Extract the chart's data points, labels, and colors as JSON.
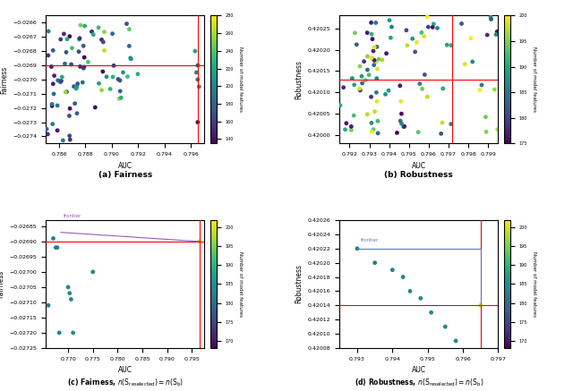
{
  "fig_width": 6.4,
  "fig_height": 4.37,
  "a_xlabel": "AUC",
  "a_ylabel": "Fairness",
  "b_xlabel": "AUC",
  "b_ylabel": "Robustness",
  "c_xlabel": "AUC",
  "c_ylabel": "Fairness",
  "d_xlabel": "AUC",
  "d_ylabel": "Robustness",
  "a_xlim": [
    0.785,
    0.797
  ],
  "a_ylim": [
    -0.02745,
    -0.02655
  ],
  "a_hline": -0.0269,
  "a_vline": 0.7965,
  "b_xlim": [
    0.7915,
    0.7995
  ],
  "b_ylim": [
    0.41998,
    0.42028
  ],
  "b_hline": 0.42013,
  "b_vline": 0.7972,
  "c_xlim": [
    0.7655,
    0.7975
  ],
  "c_ylim": [
    -0.02725,
    -0.02683
  ],
  "c_hline": -0.0269,
  "c_vline": 0.7965,
  "d_xlim": [
    0.7925,
    0.7375
  ],
  "d_ylim": [
    0.42008,
    0.42026
  ],
  "d_hline": 0.42014,
  "d_vline": 0.7965,
  "colorbar_label": "Number of model features",
  "a_cmap": "viridis",
  "a_clim": [
    135,
    280
  ],
  "b_cmap": "viridis",
  "b_clim": [
    175,
    200
  ],
  "c_cmap": "viridis",
  "c_clim": [
    168,
    202
  ],
  "d_cmap": "viridis",
  "d_clim": [
    168,
    202
  ],
  "red_line_color": "red",
  "line_lw": 0.8,
  "dot_size": 12,
  "frontier_label": "frontier",
  "frontier_color_c": "#9b59b6",
  "frontier_color_d": "#5577dd"
}
